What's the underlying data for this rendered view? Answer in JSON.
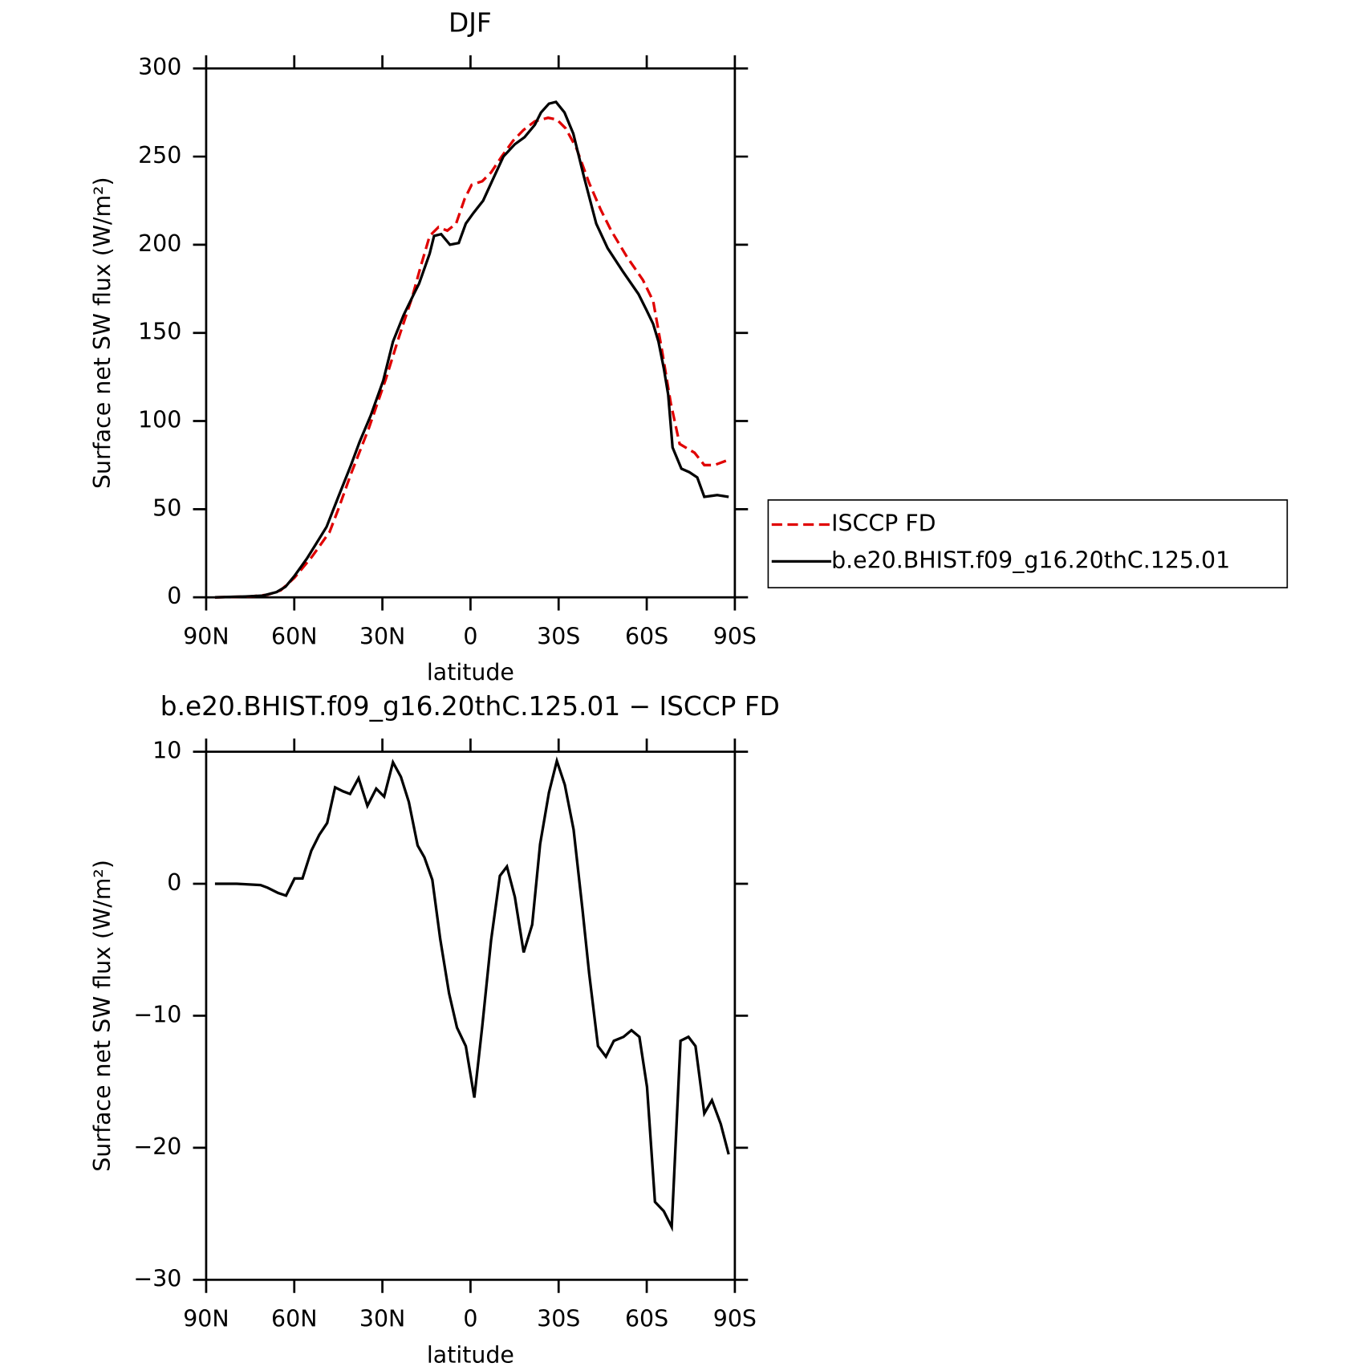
{
  "chart_data": [
    {
      "type": "line",
      "title": "DJF",
      "xlabel": "latitude",
      "ylabel": "Surface net SW flux (W/m²)",
      "xlim": [
        90,
        -90
      ],
      "xticks": [
        {
          "value": 90,
          "label": "90N"
        },
        {
          "value": 60,
          "label": "60N"
        },
        {
          "value": 30,
          "label": "30N"
        },
        0,
        {
          "value": -30,
          "label": "30S"
        },
        {
          "value": -60,
          "label": "60S"
        },
        {
          "value": -90,
          "label": "90S"
        }
      ],
      "ylim": [
        0,
        300
      ],
      "yticks": [
        0,
        50,
        100,
        150,
        200,
        250,
        300
      ],
      "legend": "right",
      "series": [
        {
          "name": "ISCCP FD",
          "color": "#e00000",
          "line_style": "dashed",
          "x": [
            87,
            75,
            69,
            64.6,
            60,
            54,
            51,
            48,
            45,
            40.7,
            34.6,
            28.8,
            24.3,
            19.9,
            16.9,
            13.9,
            10.9,
            7.9,
            4.9,
            2,
            -0.4,
            -4,
            -7,
            -10.6,
            -14.5,
            -18,
            -21.9,
            -26.4,
            -29.4,
            -32.4,
            -36,
            -40.4,
            -44.3,
            -47.9,
            -53.3,
            -58.7,
            -62.2,
            -65.2,
            -68.2,
            -71.2,
            -76.3,
            -79.6,
            -83,
            -87.9
          ],
          "values": [
            0,
            0.5,
            1.5,
            4,
            11,
            23,
            30,
            37,
            50,
            70,
            96,
            124,
            148,
            170,
            188,
            205,
            210,
            208,
            212,
            226,
            234,
            236,
            241,
            250,
            259,
            265,
            270,
            272,
            271,
            266,
            255,
            235,
            220,
            208,
            193,
            180,
            168,
            140,
            110,
            87,
            82,
            75,
            75,
            78
          ]
        },
        {
          "name": "b.e20.BHIST.f09_g16.20thC.125.01",
          "color": "#000000",
          "line_style": "solid",
          "x": [
            87,
            76.6,
            70.6,
            66,
            63,
            60,
            55.7,
            52.7,
            49,
            45,
            40.7,
            37.8,
            34,
            29.7,
            26.4,
            22.8,
            19.3,
            17.5,
            13.9,
            12.4,
            10,
            7,
            4,
            1.6,
            -1,
            -4.3,
            -7.6,
            -11.2,
            -15.1,
            -18.4,
            -21.9,
            -24,
            -26.7,
            -29.1,
            -32,
            -35,
            -38.4,
            -42.8,
            -46.7,
            -51.8,
            -57.2,
            -59.9,
            -62.2,
            -64,
            -65.8,
            -67.3,
            -68.8,
            -71.8,
            -74.5,
            -77.2,
            -79.6,
            -84,
            -87.9
          ],
          "values": [
            0,
            0.5,
            1,
            3,
            6,
            12,
            22,
            30,
            40,
            57,
            75,
            88,
            103,
            123,
            145,
            160,
            172,
            178,
            195,
            205,
            206,
            200,
            201,
            212,
            218,
            225,
            237,
            250,
            257,
            261,
            268,
            275,
            280,
            281,
            275,
            263,
            240,
            212,
            198,
            185,
            172,
            163,
            155,
            145,
            130,
            115,
            85,
            73,
            71,
            68,
            57,
            58,
            57
          ]
        }
      ]
    },
    {
      "type": "line",
      "title": "b.e20.BHIST.f09_g16.20thC.125.01 − ISCCP FD",
      "xlabel": "latitude",
      "ylabel": "Surface net SW flux (W/m²)",
      "xlim": [
        90,
        -90
      ],
      "xticks": [
        {
          "value": 90,
          "label": "90N"
        },
        {
          "value": 60,
          "label": "60N"
        },
        {
          "value": 30,
          "label": "30N"
        },
        0,
        {
          "value": -30,
          "label": "30S"
        },
        {
          "value": -60,
          "label": "60S"
        },
        {
          "value": -90,
          "label": "90S"
        }
      ],
      "ylim": [
        -30,
        10
      ],
      "yticks": [
        {
          "value": -30,
          "label": "−30"
        },
        {
          "value": -20,
          "label": "−20"
        },
        {
          "value": -10,
          "label": "−10"
        },
        0,
        10
      ],
      "color": "#000000",
      "x": [
        87,
        79.6,
        71.5,
        69.1,
        65.5,
        62.8,
        59.9,
        57.2,
        54.2,
        51.5,
        48.8,
        46.1,
        43.4,
        41,
        38.1,
        35.1,
        32.1,
        29.4,
        26.4,
        23.7,
        21,
        18,
        15.7,
        13,
        10.3,
        7.3,
        4.6,
        1.6,
        -1.3,
        -4,
        -7,
        -10,
        -12.4,
        -15.1,
        -18.1,
        -21,
        -23.7,
        -26.7,
        -29.4,
        -32.1,
        -35.1,
        -38.1,
        -40.4,
        -43.4,
        -46.1,
        -48.8,
        -52.1,
        -54.8,
        -57.5,
        -60.1,
        -62.8,
        -65.8,
        -68.5,
        -71.5,
        -74.2,
        -76.6,
        -79.6,
        -82.2,
        -85.2,
        -87.9
      ],
      "values": [
        0,
        0,
        -0.1,
        -0.3,
        -0.7,
        -0.9,
        0.4,
        0.4,
        2.5,
        3.7,
        4.6,
        7.3,
        7.0,
        6.8,
        8.0,
        5.9,
        7.2,
        6.6,
        9.2,
        8.1,
        6.2,
        2.9,
        2.0,
        0.3,
        -4.2,
        -8.3,
        -10.9,
        -12.3,
        -16.2,
        -10.8,
        -4.3,
        0.6,
        1.3,
        -1.0,
        -5.2,
        -3.1,
        3.0,
        6.9,
        9.3,
        7.5,
        4.1,
        -1.9,
        -6.8,
        -12.3,
        -13.1,
        -11.9,
        -11.6,
        -11.1,
        -11.6,
        -15.4,
        -24.1,
        -24.8,
        -26.0,
        -11.9,
        -11.6,
        -12.3,
        -17.4,
        -16.4,
        -18.2,
        -20.5
      ]
    }
  ]
}
